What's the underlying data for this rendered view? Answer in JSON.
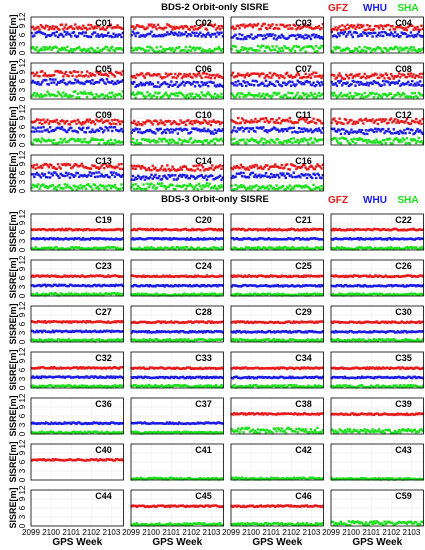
{
  "chart_data": {
    "type": "scatter",
    "x_axis": {
      "label": "GPS Week",
      "ticks": [
        "2099",
        "2100",
        "2101",
        "2102",
        "2103"
      ],
      "range": [
        2099,
        2103.6
      ]
    },
    "y_axis": {
      "label": "SISRE[m]",
      "ticks": [
        "0",
        "3",
        "6",
        "9",
        "12"
      ],
      "range": [
        0,
        12
      ]
    },
    "grid": true,
    "legend_position": "top-right",
    "series_legend": [
      {
        "name": "GFZ",
        "color": "#e8191a"
      },
      {
        "name": "WHU",
        "color": "#1a1ae8"
      },
      {
        "name": "SHA",
        "color": "#19e019"
      }
    ],
    "groups": [
      {
        "title": "BDS-2 Orbit-only SISRE",
        "panels": [
          {
            "sat": "C01",
            "gfz": 8.6,
            "whu": 6.2,
            "sha": 1.3
          },
          {
            "sat": "C02",
            "gfz": 8.7,
            "whu": 6.3,
            "sha": 1.3
          },
          {
            "sat": "C03",
            "gfz": 8.8,
            "whu": 5.4,
            "sha": 1.5
          },
          {
            "sat": "C04",
            "gfz": 8.5,
            "whu": 6.2,
            "sha": 1.3
          },
          {
            "sat": "C05",
            "gfz": 8.4,
            "whu": 5.7,
            "sha": 1.6
          },
          {
            "sat": "C06",
            "gfz": 7.8,
            "whu": 4.9,
            "sha": 1.4
          },
          {
            "sat": "C07",
            "gfz": 7.9,
            "whu": 5.2,
            "sha": 1.3
          },
          {
            "sat": "C08",
            "gfz": 7.6,
            "whu": 5.2,
            "sha": 1.3
          },
          {
            "sat": "C09",
            "gfz": 7.7,
            "whu": 5.1,
            "sha": 1.4
          },
          {
            "sat": "C10",
            "gfz": 7.5,
            "whu": 4.6,
            "sha": 1.4
          },
          {
            "sat": "C11",
            "gfz": 8.1,
            "whu": 5.0,
            "sha": 1.4
          },
          {
            "sat": "C12",
            "gfz": 7.9,
            "whu": 4.5,
            "sha": 1.5
          },
          {
            "sat": "C13",
            "gfz": 8.2,
            "whu": 5.3,
            "sha": 1.4
          },
          {
            "sat": "C14",
            "gfz": 7.7,
            "whu": 4.6,
            "sha": 1.6
          },
          {
            "sat": "C16",
            "gfz": 8.0,
            "whu": 5.2,
            "sha": 1.3
          }
        ]
      },
      {
        "title": "BDS-3 Orbit-only SISRE",
        "panels": [
          {
            "sat": "C19",
            "gfz": 6.8,
            "whu": 3.7,
            "sha": 0.6
          },
          {
            "sat": "C20",
            "gfz": 6.8,
            "whu": 3.7,
            "sha": 0.6
          },
          {
            "sat": "C21",
            "gfz": 6.8,
            "whu": 3.7,
            "sha": 0.6
          },
          {
            "sat": "C22",
            "gfz": 6.8,
            "whu": 3.7,
            "sha": 0.6
          },
          {
            "sat": "C23",
            "gfz": 6.6,
            "whu": 3.5,
            "sha": 0.6
          },
          {
            "sat": "C24",
            "gfz": 6.6,
            "whu": 3.4,
            "sha": 0.5
          },
          {
            "sat": "C25",
            "gfz": 6.6,
            "whu": 3.4,
            "sha": 0.5
          },
          {
            "sat": "C26",
            "gfz": 6.6,
            "whu": 3.4,
            "sha": 0.5
          },
          {
            "sat": "C27",
            "gfz": 6.7,
            "whu": 3.5,
            "sha": 0.6
          },
          {
            "sat": "C28",
            "gfz": 6.6,
            "whu": 3.4,
            "sha": 0.6
          },
          {
            "sat": "C29",
            "gfz": 6.6,
            "whu": 3.4,
            "sha": 0.6
          },
          {
            "sat": "C30",
            "gfz": 6.6,
            "whu": 3.4,
            "sha": 0.6
          },
          {
            "sat": "C32",
            "gfz": 6.7,
            "whu": 3.6,
            "sha": 0.6
          },
          {
            "sat": "C33",
            "gfz": 6.6,
            "whu": 3.5,
            "sha": 0.6
          },
          {
            "sat": "C34",
            "gfz": 6.6,
            "whu": 3.5,
            "sha": 0.6
          },
          {
            "sat": "C35",
            "gfz": 6.6,
            "whu": 3.5,
            "sha": 0.6
          },
          {
            "sat": "C36",
            "gfz": null,
            "whu": 3.6,
            "sha": 0.5
          },
          {
            "sat": "C37",
            "gfz": null,
            "whu": 3.6,
            "sha": 0.5
          },
          {
            "sat": "C38",
            "gfz": 6.7,
            "whu": null,
            "sha": 1.3
          },
          {
            "sat": "C39",
            "gfz": 6.6,
            "whu": null,
            "sha": 1.0
          },
          {
            "sat": "C40",
            "gfz": 6.7,
            "whu": null,
            "sha": null
          },
          {
            "sat": "C41",
            "gfz": null,
            "whu": null,
            "sha": 0.5
          },
          {
            "sat": "C42",
            "gfz": null,
            "whu": null,
            "sha": 0.5
          },
          {
            "sat": "C43",
            "gfz": null,
            "whu": null,
            "sha": 0.4
          },
          {
            "sat": "C44",
            "gfz": null,
            "whu": null,
            "sha": null
          },
          {
            "sat": "C45",
            "gfz": 6.6,
            "whu": null,
            "sha": 0.6
          },
          {
            "sat": "C46",
            "gfz": 6.6,
            "whu": null,
            "sha": 0.6
          },
          {
            "sat": "C59",
            "gfz": null,
            "whu": null,
            "sha": 1.0
          }
        ]
      }
    ]
  }
}
